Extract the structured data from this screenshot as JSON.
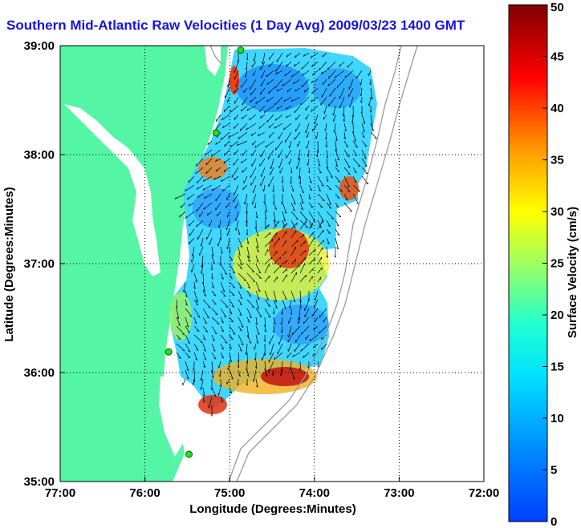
{
  "title": "Southern Mid-Atlantic Raw Velocities (1 Day Avg) 2009/03/23 1400 GMT",
  "x_axis": {
    "label": "Longitude (Degrees:Minutes)",
    "ticks": [
      "77:00",
      "76:00",
      "75:00",
      "74:00",
      "73:00",
      "72:00"
    ]
  },
  "y_axis": {
    "label": "Latitude (Degrees:Minutes)",
    "ticks": [
      "39:00",
      "38:00",
      "37:00",
      "36:00",
      "35:00"
    ]
  },
  "colorbar": {
    "label": "Surface Velocity (cm/s)",
    "ticks": [
      "0",
      "5",
      "10",
      "15",
      "20",
      "25",
      "30",
      "35",
      "40",
      "45",
      "50"
    ],
    "range": [
      0,
      50
    ],
    "colormap": "jet"
  },
  "colors": {
    "land": "#54f5a4",
    "title": "#1515e0",
    "vectors": "#000000",
    "stations": "#22dd22"
  },
  "map_extent": {
    "lon": [
      -77,
      -72
    ],
    "lat": [
      35,
      39
    ]
  },
  "radar_stations": [
    {
      "lon": -74.87,
      "lat": 38.96
    },
    {
      "lon": -75.16,
      "lat": 38.2
    },
    {
      "lon": -75.72,
      "lat": 36.19
    },
    {
      "lon": -75.48,
      "lat": 35.25
    }
  ]
}
